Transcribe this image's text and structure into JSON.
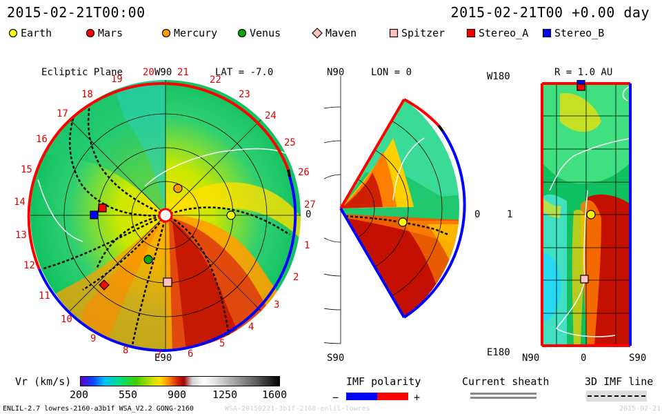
{
  "header": {
    "left_timestamp": "2015-02-21T00:00",
    "right_timestamp": "2015-02-21T00 +0.00 day"
  },
  "legend": [
    {
      "name": "Earth",
      "color": "#ffff00",
      "shape": "circle"
    },
    {
      "name": "Mars",
      "color": "#ff0000",
      "shape": "circle"
    },
    {
      "name": "Mercury",
      "color": "#ff9900",
      "shape": "circle"
    },
    {
      "name": "Venus",
      "color": "#00aa00",
      "shape": "circle"
    },
    {
      "name": "Maven",
      "color": "#ffc0c0",
      "shape": "diamond"
    },
    {
      "name": "Spitzer",
      "color": "#ffc0c0",
      "shape": "square"
    },
    {
      "name": "Stereo_A",
      "color": "#ff0000",
      "shape": "square"
    },
    {
      "name": "Stereo_B",
      "color": "#0000ff",
      "shape": "square"
    }
  ],
  "ecliptic_panel": {
    "title": "Ecliptic Plane",
    "top_label": "W90",
    "bottom_label": "E90",
    "right_label": "0",
    "lat_label": "LAT = -7.0",
    "rotation_numbers": [
      "27",
      "1",
      "2",
      "3",
      "4",
      "5",
      "6",
      "7",
      "8",
      "9",
      "10",
      "11",
      "12",
      "13",
      "14",
      "15",
      "16",
      "17",
      "18",
      "19",
      "20",
      "21",
      "22",
      "23",
      "24",
      "25",
      "26"
    ]
  },
  "meridional_panel": {
    "top_label": "N90",
    "bottom_label": "S90",
    "lon_label": "LON = 0",
    "right_label": "0"
  },
  "lonlat_panel": {
    "title": "R = 1.0 AU",
    "top_left": "W180",
    "mid_left": "1",
    "bottom_left": "E180",
    "x_left": "N90",
    "x_mid": "0",
    "x_right": "S90"
  },
  "colorbar": {
    "label": "Vr (km/s)",
    "ticks": [
      "200",
      "550",
      "900",
      "1250",
      "1600"
    ]
  },
  "imf_polarity": {
    "label": "IMF polarity",
    "minus": "−",
    "plus": "+",
    "neg_color": "#0000ff",
    "pos_color": "#ff0000"
  },
  "current_sheath": {
    "label": "Current sheath"
  },
  "imf_line": {
    "label": "3D IMF line"
  },
  "footer": {
    "model_info": "ENLIL-2.7 lowres-2160-a3b1f WSA_V2.2 GONG-2160",
    "run_id": "WSA-20150221-3b1f-2160-enlil-lowres",
    "date_stub": "2015-02-21"
  }
}
